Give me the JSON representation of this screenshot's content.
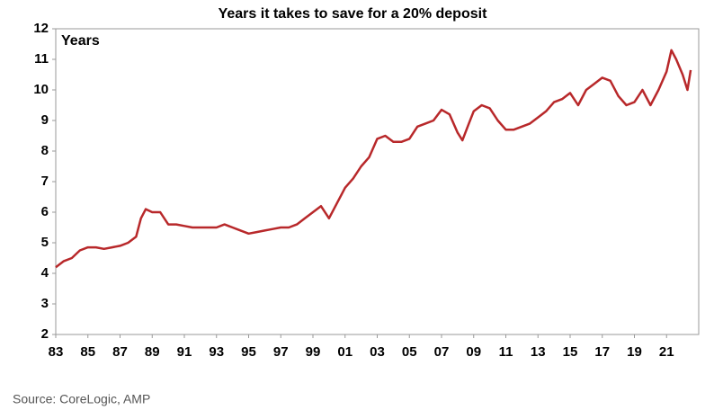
{
  "chart_data": {
    "type": "line",
    "title": "Years it takes to save for a 20% deposit",
    "ylabel": "Years",
    "source": "Source: CoreLogic, AMP",
    "x": [
      1983,
      1983.5,
      1984,
      1984.5,
      1985,
      1985.5,
      1986,
      1986.5,
      1987,
      1987.5,
      1988,
      1988.3,
      1988.6,
      1989,
      1989.5,
      1990,
      1990.5,
      1991,
      1991.5,
      1992,
      1992.5,
      1993,
      1993.5,
      1994,
      1994.5,
      1995,
      1995.5,
      1996,
      1996.5,
      1997,
      1997.5,
      1998,
      1998.5,
      1999,
      1999.5,
      2000,
      2000.5,
      2001,
      2001.5,
      2002,
      2002.5,
      2003,
      2003.5,
      2004,
      2004.5,
      2005,
      2005.5,
      2006,
      2006.5,
      2007,
      2007.5,
      2008,
      2008.3,
      2008.7,
      2009,
      2009.5,
      2010,
      2010.5,
      2011,
      2011.5,
      2012,
      2012.5,
      2013,
      2013.5,
      2014,
      2014.5,
      2015,
      2015.5,
      2016,
      2016.5,
      2017,
      2017.5,
      2018,
      2018.5,
      2019,
      2019.5,
      2020,
      2020.5,
      2021,
      2021.3,
      2021.6,
      2022,
      2022.3,
      2022.5
    ],
    "series": [
      {
        "name": "Years",
        "color": "#b8282a",
        "values": [
          4.2,
          4.4,
          4.5,
          4.75,
          4.85,
          4.85,
          4.8,
          4.85,
          4.9,
          5.0,
          5.2,
          5.8,
          6.1,
          6.0,
          6.0,
          5.6,
          5.6,
          5.55,
          5.5,
          5.5,
          5.5,
          5.5,
          5.6,
          5.5,
          5.4,
          5.3,
          5.35,
          5.4,
          5.45,
          5.5,
          5.5,
          5.6,
          5.8,
          6.0,
          6.2,
          5.8,
          6.3,
          6.8,
          7.1,
          7.5,
          7.8,
          8.4,
          8.5,
          8.3,
          8.3,
          8.4,
          8.8,
          8.9,
          9.0,
          9.35,
          9.2,
          8.6,
          8.35,
          8.9,
          9.3,
          9.5,
          9.4,
          9.0,
          8.7,
          8.7,
          8.8,
          8.9,
          9.1,
          9.3,
          9.6,
          9.7,
          9.9,
          9.5,
          10.0,
          10.2,
          10.4,
          10.3,
          9.8,
          9.5,
          9.6,
          10.0,
          9.5,
          10.0,
          10.6,
          11.3,
          11.0,
          10.5,
          10.0,
          10.65
        ]
      }
    ],
    "xlim": [
      1983,
      2023
    ],
    "xticks": [
      {
        "value": 1983,
        "label": "83"
      },
      {
        "value": 1985,
        "label": "85"
      },
      {
        "value": 1987,
        "label": "87"
      },
      {
        "value": 1989,
        "label": "89"
      },
      {
        "value": 1991,
        "label": "91"
      },
      {
        "value": 1993,
        "label": "93"
      },
      {
        "value": 1995,
        "label": "95"
      },
      {
        "value": 1997,
        "label": "97"
      },
      {
        "value": 1999,
        "label": "99"
      },
      {
        "value": 2001,
        "label": "01"
      },
      {
        "value": 2003,
        "label": "03"
      },
      {
        "value": 2005,
        "label": "05"
      },
      {
        "value": 2007,
        "label": "07"
      },
      {
        "value": 2009,
        "label": "09"
      },
      {
        "value": 2011,
        "label": "11"
      },
      {
        "value": 2013,
        "label": "13"
      },
      {
        "value": 2015,
        "label": "15"
      },
      {
        "value": 2017,
        "label": "17"
      },
      {
        "value": 2019,
        "label": "19"
      },
      {
        "value": 2021,
        "label": "21"
      }
    ],
    "ylim": [
      2,
      12
    ],
    "yticks": [
      2,
      3,
      4,
      5,
      6,
      7,
      8,
      9,
      10,
      11,
      12
    ]
  }
}
